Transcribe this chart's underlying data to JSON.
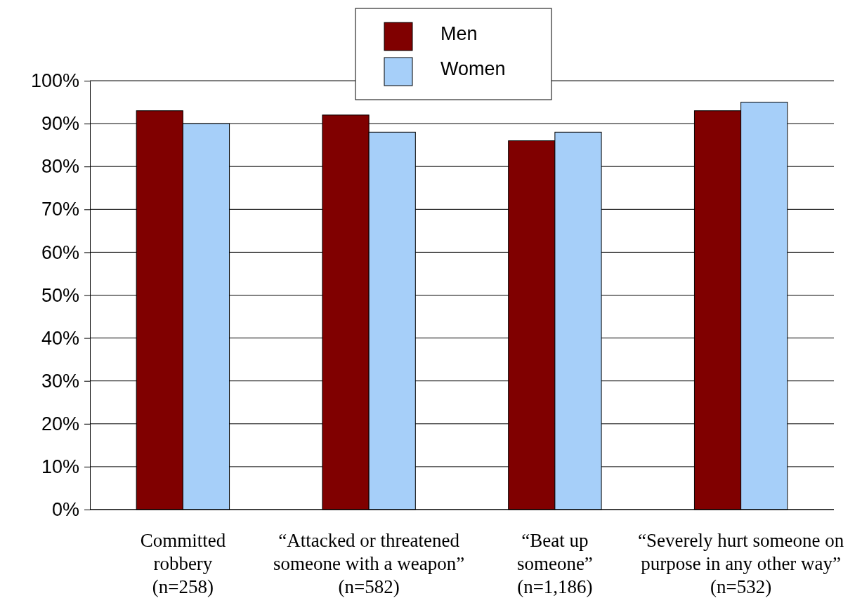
{
  "chart_data": {
    "type": "bar",
    "categories": [
      "Committed\nrobbery\n(n=258)",
      "“Attacked or threatened\nsomeone with a weapon”\n(n=582)",
      "“Beat up\nsomeone”\n(n=1,186)",
      "“Severely hurt someone on\npurpose in any other way”\n(n=532)"
    ],
    "series": [
      {
        "name": "Men",
        "color": "#800000",
        "values": [
          93,
          92,
          86,
          93
        ]
      },
      {
        "name": "Women",
        "color": "#a6cff9",
        "values": [
          90,
          88,
          88,
          95
        ]
      }
    ],
    "ylim": [
      0,
      100
    ],
    "yticks": [
      {
        "value": 0,
        "label": "0%"
      },
      {
        "value": 10,
        "label": "10%"
      },
      {
        "value": 20,
        "label": "20%"
      },
      {
        "value": 30,
        "label": "30%"
      },
      {
        "value": 40,
        "label": "40%"
      },
      {
        "value": 50,
        "label": "50%"
      },
      {
        "value": 60,
        "label": "60%"
      },
      {
        "value": 70,
        "label": "70%"
      },
      {
        "value": 80,
        "label": "80%"
      },
      {
        "value": 90,
        "label": "90%"
      },
      {
        "value": 100,
        "label": "100%"
      }
    ],
    "grid": "y",
    "legend": "top"
  }
}
